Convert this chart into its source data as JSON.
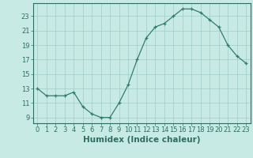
{
  "x": [
    0,
    1,
    2,
    3,
    4,
    5,
    6,
    7,
    8,
    9,
    10,
    11,
    12,
    13,
    14,
    15,
    16,
    17,
    18,
    19,
    20,
    21,
    22,
    23
  ],
  "y": [
    13,
    12,
    12,
    12,
    12.5,
    10.5,
    9.5,
    9,
    9,
    11,
    13.5,
    17,
    20,
    21.5,
    22,
    23,
    24,
    24,
    23.5,
    22.5,
    21.5,
    19,
    17.5,
    16.5
  ],
  "line_color": "#2e7d6e",
  "marker": "+",
  "marker_color": "#2e7d6e",
  "bg_color": "#c8eae4",
  "grid_color": "#a0ccc6",
  "xlabel": "Humidex (Indice chaleur)",
  "xlabel_fontsize": 7.5,
  "xlim": [
    -0.5,
    23.5
  ],
  "ylim": [
    8.2,
    24.8
  ],
  "yticks": [
    9,
    11,
    13,
    15,
    17,
    19,
    21,
    23
  ],
  "xticks": [
    0,
    1,
    2,
    3,
    4,
    5,
    6,
    7,
    8,
    9,
    10,
    11,
    12,
    13,
    14,
    15,
    16,
    17,
    18,
    19,
    20,
    21,
    22,
    23
  ],
  "tick_fontsize": 6,
  "axis_color": "#2e6e60"
}
